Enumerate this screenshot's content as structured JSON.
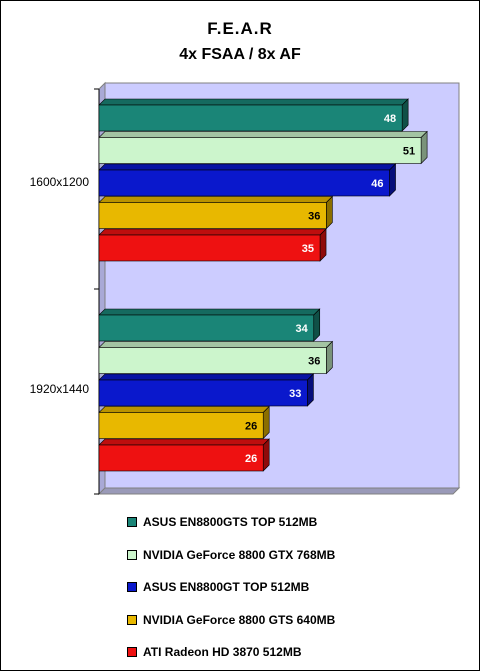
{
  "title": "F.E.A.R",
  "subtitle": "4x FSAA / 8x AF",
  "chart_data": {
    "type": "bar",
    "orientation": "horizontal",
    "title": "F.E.A.R",
    "subtitle": "4x FSAA / 8x AF",
    "categories": [
      "1600x1200",
      "1920x1440"
    ],
    "series": [
      {
        "name": "ASUS EN8800GTS TOP 512MB",
        "color": "#1a8577",
        "values": [
          48,
          34
        ]
      },
      {
        "name": "NVIDIA GeForce 8800 GTX 768MB",
        "color": "#ccf5cc",
        "values": [
          51,
          36
        ]
      },
      {
        "name": "ASUS EN8800GT TOP 512MB",
        "color": "#0a18cc",
        "values": [
          46,
          33
        ]
      },
      {
        "name": "NVIDIA GeForce 8800 GTS 640MB",
        "color": "#e8b800",
        "values": [
          36,
          26
        ]
      },
      {
        "name": "ATI Radeon HD 3870 512MB",
        "color": "#ee1111",
        "values": [
          35,
          26
        ]
      }
    ],
    "xlim": [
      0,
      57
    ],
    "plot_background": "#ccccff",
    "data_labels": true,
    "legend_position": "bottom",
    "grid": false
  }
}
